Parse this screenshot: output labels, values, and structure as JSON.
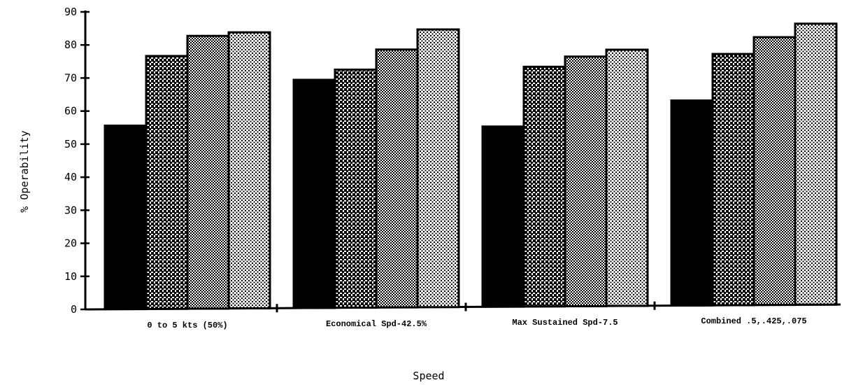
{
  "chart_data": {
    "type": "bar",
    "title": "",
    "xlabel": "Speed",
    "ylabel": "% Operability",
    "ylim": [
      0,
      90
    ],
    "yticks": [
      0,
      10,
      20,
      30,
      40,
      50,
      60,
      70,
      80,
      90
    ],
    "categories": [
      "0 to 5 kts (50%)",
      "Economical Spd-42.5%",
      "Max Sustained Spd-7.5",
      "Combined .5,.425,.075"
    ],
    "series": [
      {
        "values": [
          55.5,
          69,
          54.5,
          62
        ]
      },
      {
        "values": [
          76.5,
          72,
          72.5,
          76
        ]
      },
      {
        "values": [
          82.5,
          78,
          75.5,
          81
        ]
      },
      {
        "values": [
          83.5,
          84,
          77.5,
          85
        ]
      }
    ],
    "grid": false,
    "legend": "none"
  }
}
